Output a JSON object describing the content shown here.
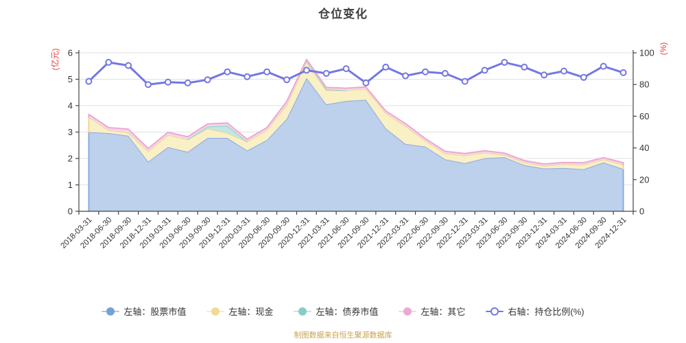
{
  "header": {
    "title": "仓位变化"
  },
  "axes": {
    "left_unit": "(亿元)",
    "right_unit": "(%)",
    "unit_color": "#e23d3d",
    "left_ticks": [
      0,
      1,
      2,
      3,
      4,
      5,
      6
    ],
    "right_ticks": [
      0,
      20,
      40,
      60,
      80,
      100
    ]
  },
  "legend": {
    "items": [
      {
        "label": "左轴：股票市值",
        "marker_color": "#76a1d8",
        "marker_line_color": "#adc6e8",
        "marker_style": "filled"
      },
      {
        "label": "左轴：现金",
        "marker_color": "#f1da92",
        "marker_line_color": "#f8ecc4",
        "marker_style": "filled"
      },
      {
        "label": "左轴：债券市值",
        "marker_color": "#85cec5",
        "marker_line_color": "#c2e6e0",
        "marker_style": "filled"
      },
      {
        "label": "左轴：其它",
        "marker_color": "#ebaad2",
        "marker_line_color": "#f5d6e8",
        "marker_style": "filled"
      },
      {
        "label": "右轴：持仓比例(%)",
        "marker_color": "#7377e2",
        "marker_line_color": "#7377e2",
        "marker_style": "open"
      }
    ]
  },
  "footer": {
    "text": "制图数据来自恒生聚源数据库",
    "color": "#c9a250"
  },
  "chart_data": {
    "type": "area",
    "title": "仓位变化",
    "grid": "horizontal",
    "ylim_left": [
      0,
      6
    ],
    "ylim_right": [
      0,
      100
    ],
    "legend_position": "bottom",
    "x": [
      "2018-03-31",
      "2018-06-30",
      "2018-09-30",
      "2018-12-31",
      "2019-03-31",
      "2019-06-30",
      "2019-09-30",
      "2019-12-31",
      "2020-03-31",
      "2020-06-30",
      "2020-09-30",
      "2020-12-31",
      "2021-03-31",
      "2021-06-30",
      "2021-09-30",
      "2021-12-31",
      "2022-03-31",
      "2022-06-30",
      "2022-09-30",
      "2022-12-31",
      "2023-03-31",
      "2023-06-30",
      "2023-09-30",
      "2023-12-31",
      "2024-03-31",
      "2024-06-30",
      "2024-09-30",
      "2024-12-31"
    ],
    "series": [
      {
        "name": "左轴：股票市值",
        "type": "area",
        "stack": true,
        "yaxis": "left",
        "color": "#8bacdf",
        "fill": "#bdd0ec",
        "values": [
          3.0,
          2.96,
          2.86,
          1.88,
          2.43,
          2.25,
          2.78,
          2.78,
          2.3,
          2.7,
          3.5,
          5.05,
          4.05,
          4.18,
          4.22,
          3.14,
          2.55,
          2.45,
          1.97,
          1.82,
          2.01,
          2.05,
          1.75,
          1.62,
          1.64,
          1.59,
          1.85,
          1.6
        ]
      },
      {
        "name": "左轴：现金",
        "type": "area",
        "stack": true,
        "yaxis": "left",
        "color": "#f0d793",
        "fill": "#faf0c5",
        "values": [
          0.57,
          0.11,
          0.12,
          0.39,
          0.46,
          0.47,
          0.35,
          0.18,
          0.34,
          0.38,
          0.53,
          0.63,
          0.53,
          0.4,
          0.41,
          0.58,
          0.67,
          0.22,
          0.22,
          0.3,
          0.21,
          0.08,
          0.1,
          0.1,
          0.14,
          0.18,
          0.11,
          0.17
        ]
      },
      {
        "name": "左轴：债券市值",
        "type": "area",
        "stack": true,
        "yaxis": "left",
        "color": "#8ed2c9",
        "fill": "#c3e6e0",
        "values": [
          0,
          0,
          0,
          0,
          0,
          0,
          0.08,
          0.28,
          0,
          0,
          0,
          0,
          0.04,
          0,
          0,
          0,
          0,
          0,
          0,
          0,
          0,
          0,
          0,
          0,
          0,
          0,
          0,
          0
        ]
      },
      {
        "name": "左轴：其它",
        "type": "area",
        "stack": true,
        "yaxis": "left",
        "color": "#eba8d2",
        "fill": "#f5d7e9",
        "values": [
          0.1,
          0.1,
          0.13,
          0.11,
          0.1,
          0.1,
          0.1,
          0.1,
          0.09,
          0.09,
          0.13,
          0.07,
          0.07,
          0.08,
          0.08,
          0.08,
          0.1,
          0.08,
          0.08,
          0.07,
          0.07,
          0.07,
          0.07,
          0.07,
          0.07,
          0.07,
          0.07,
          0.07
        ]
      },
      {
        "name": "右轴：持仓比例(%)",
        "type": "line",
        "yaxis": "right",
        "color": "#7377e2",
        "marker": "open-circle",
        "values": [
          82,
          94,
          92,
          80,
          81.5,
          81,
          83,
          88,
          85,
          88,
          83,
          89,
          87,
          90,
          81,
          91,
          85.5,
          88,
          87,
          82,
          89,
          94,
          91,
          86,
          88.5,
          84.5,
          91.5,
          87.5
        ]
      }
    ]
  }
}
